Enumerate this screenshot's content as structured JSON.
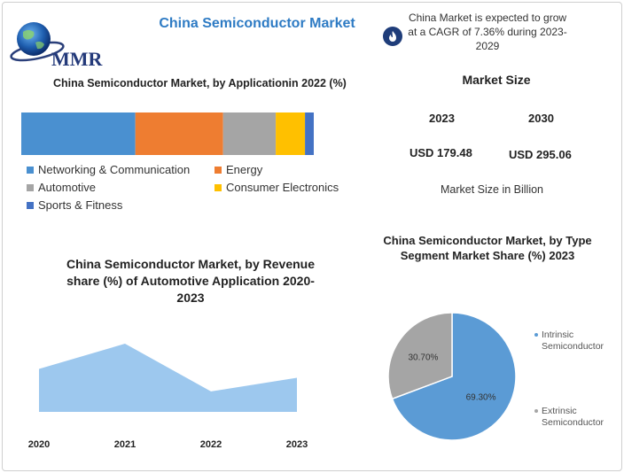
{
  "header": {
    "logo_text": "MMR",
    "title": "China Semiconductor Market",
    "cagr_text": "China Market is expected to grow at a CAGR of 7.36% during 2023-2029"
  },
  "market_size": {
    "title": "Market Size",
    "year_start": "2023",
    "year_end": "2030",
    "value_start": "USD 179.48",
    "value_end": "USD 295.06",
    "note": "Market Size in Billion"
  },
  "colors": {
    "networking": "#4a90d0",
    "energy": "#ee7d31",
    "automotive": "#a5a5a5",
    "consumer": "#ffc000",
    "sports": "#4472c4",
    "area_fill": "#9dc8ee",
    "pie_intrinsic": "#5b9bd5",
    "pie_extrinsic": "#a5a5a5"
  },
  "chart_data": [
    {
      "type": "bar",
      "title": "China Semiconductor Market, by Applicationin 2022 (%)",
      "stacked": true,
      "orientation": "horizontal",
      "series": [
        {
          "name": "Networking & Communication",
          "values": [
            39
          ]
        },
        {
          "name": "Energy",
          "values": [
            30
          ]
        },
        {
          "name": "Automotive",
          "values": [
            18
          ]
        },
        {
          "name": "Consumer Electronics",
          "values": [
            10
          ]
        },
        {
          "name": "Sports & Fitness",
          "values": [
            3
          ]
        }
      ],
      "legend_position": "bottom"
    },
    {
      "type": "area",
      "title": "China Semiconductor Market, by Revenue share (%) of Automotive Application 2020- 2023",
      "categories": [
        "2020",
        "2021",
        "2022",
        "2023"
      ],
      "values": [
        63,
        100,
        30,
        50
      ],
      "grid": false
    },
    {
      "type": "pie",
      "title": "China Semiconductor Market, by Type Segment Market Share (%) 2023",
      "labels": [
        "Intrinsic Semiconductor",
        "Extrinsic Semiconductor"
      ],
      "values": [
        69.3,
        30.7
      ],
      "value_labels": [
        "69.30%",
        "30.70%"
      ],
      "legend_position": "right"
    }
  ]
}
